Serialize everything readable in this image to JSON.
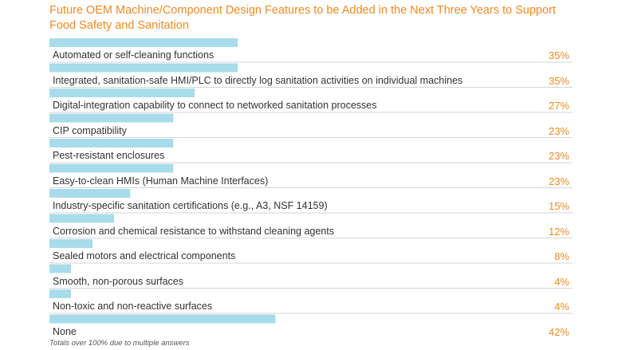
{
  "chart_data": {
    "type": "bar",
    "orientation": "horizontal",
    "title_line1": "Future OEM Machine/Component Design Features to be Added in the Next Three Years to Support",
    "title_line2": "Food Safety and Sanitation",
    "categories": [
      "Automated or self-cleaning functions",
      "Integrated, sanitation-safe HMI/PLC to directly log sanitation activities on individual machines",
      "Digital-integration capability to connect to networked sanitation processes",
      "CIP compatibility",
      "Pest-resistant enclosures",
      "Easy-to-clean HMIs (Human Machine Interfaces)",
      "Industry-specific sanitation certifications (e.g.,  A3, NSF 14159)",
      "Corrosion and chemical resistance to withstand cleaning agents",
      "Sealed motors and electrical components",
      "Smooth, non-porous surfaces",
      "Non-toxic and non-reactive surfaces",
      "None"
    ],
    "values": [
      35,
      35,
      27,
      23,
      23,
      23,
      15,
      12,
      8,
      4,
      4,
      42
    ],
    "value_labels": [
      "35%",
      "35%",
      "27%",
      "23%",
      "23%",
      "23%",
      "15%",
      "12%",
      "8%",
      "4%",
      "4%",
      "42%"
    ],
    "unit": "%",
    "xlim": [
      0,
      100
    ],
    "footnote": "Totals over 100% due to multiple answers"
  },
  "colors": {
    "bar": "#a8dceb",
    "title": "#f08a24",
    "value": "#f08a24",
    "label": "#333333",
    "divider": "#d6d6d6"
  }
}
